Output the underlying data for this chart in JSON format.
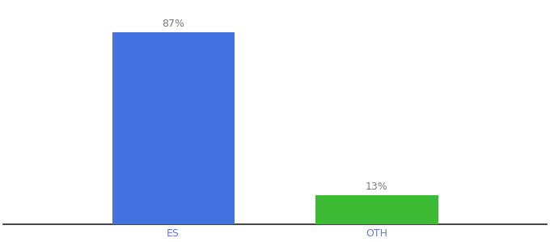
{
  "categories": [
    "ES",
    "OTH"
  ],
  "values": [
    87,
    13
  ],
  "bar_colors": [
    "#4472e0",
    "#3dbb35"
  ],
  "label_texts": [
    "87%",
    "13%"
  ],
  "background_color": "#ffffff",
  "ylim": [
    0,
    100
  ],
  "bar_width": 0.18,
  "label_fontsize": 9,
  "tick_fontsize": 9,
  "tick_color": "#6677cc",
  "label_color": "#777777",
  "spine_color": "#222222"
}
